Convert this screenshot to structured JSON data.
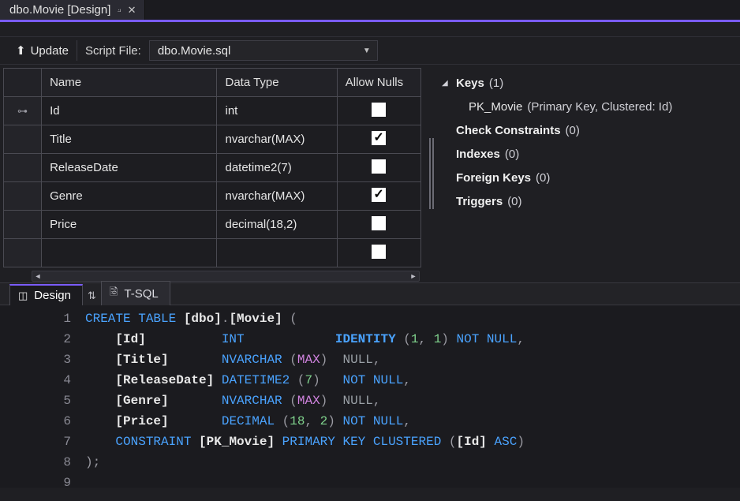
{
  "colors": {
    "background": "#1f1f23",
    "editor_bg": "#1b1b1f",
    "accent": "#7a5cff",
    "border": "#4a4a52",
    "text": "#e8e8e8",
    "muted": "#9a9aa2",
    "token_keyword": "#4aa3ff",
    "token_number": "#7fd18c",
    "token_kwarg": "#d284e0",
    "checkbox_bg": "#ffffff"
  },
  "tab": {
    "title": "dbo.Movie [Design]"
  },
  "toolbar": {
    "update_label": "Update",
    "scriptfile_label": "Script File:",
    "scriptfile_value": "dbo.Movie.sql"
  },
  "grid": {
    "headers": {
      "name": "Name",
      "datatype": "Data Type",
      "allownulls": "Allow Nulls"
    },
    "rows": [
      {
        "pk": true,
        "name": "Id",
        "type": "int",
        "allow_null": false
      },
      {
        "pk": false,
        "name": "Title",
        "type": "nvarchar(MAX)",
        "allow_null": true
      },
      {
        "pk": false,
        "name": "ReleaseDate",
        "type": "datetime2(7)",
        "allow_null": false
      },
      {
        "pk": false,
        "name": "Genre",
        "type": "nvarchar(MAX)",
        "allow_null": true
      },
      {
        "pk": false,
        "name": "Price",
        "type": "decimal(18,2)",
        "allow_null": false
      },
      {
        "pk": false,
        "name": "",
        "type": "",
        "allow_null": false
      }
    ]
  },
  "side": {
    "keys": {
      "label": "Keys",
      "count": "(1)",
      "expanded": true,
      "child_name": "PK_Movie",
      "child_detail": "(Primary Key, Clustered: Id)"
    },
    "checkconstraints": {
      "label": "Check Constraints",
      "count": "(0)"
    },
    "indexes": {
      "label": "Indexes",
      "count": "(0)"
    },
    "foreignkeys": {
      "label": "Foreign Keys",
      "count": "(0)"
    },
    "triggers": {
      "label": "Triggers",
      "count": "(0)"
    }
  },
  "bottom_tabs": {
    "design": "Design",
    "tsql": "T-SQL"
  },
  "sql": {
    "font_family": "Consolas",
    "font_size_pt": 12,
    "line_count": 9,
    "lines": [
      [
        {
          "t": "CREATE TABLE ",
          "c": "kw"
        },
        {
          "t": "[dbo]",
          "c": "idq"
        },
        {
          "t": ".",
          "c": "punc"
        },
        {
          "t": "[Movie]",
          "c": "idq"
        },
        {
          "t": " (",
          "c": "punc"
        }
      ],
      [
        {
          "t": "    ",
          "c": "punc"
        },
        {
          "t": "[Id]",
          "c": "idq"
        },
        {
          "t": "          ",
          "c": "punc"
        },
        {
          "t": "INT",
          "c": "type"
        },
        {
          "t": "            ",
          "c": "punc"
        },
        {
          "t": "IDENTITY",
          "c": "ident"
        },
        {
          "t": " (",
          "c": "punc"
        },
        {
          "t": "1",
          "c": "num"
        },
        {
          "t": ", ",
          "c": "punc"
        },
        {
          "t": "1",
          "c": "num"
        },
        {
          "t": ") ",
          "c": "punc"
        },
        {
          "t": "NOT NULL",
          "c": "kw"
        },
        {
          "t": ",",
          "c": "punc"
        }
      ],
      [
        {
          "t": "    ",
          "c": "punc"
        },
        {
          "t": "[Title]",
          "c": "idq"
        },
        {
          "t": "       ",
          "c": "punc"
        },
        {
          "t": "NVARCHAR",
          "c": "type"
        },
        {
          "t": " (",
          "c": "punc"
        },
        {
          "t": "MAX",
          "c": "kwarg"
        },
        {
          "t": ")  ",
          "c": "punc"
        },
        {
          "t": "NULL",
          "c": "null"
        },
        {
          "t": ",",
          "c": "punc"
        }
      ],
      [
        {
          "t": "    ",
          "c": "punc"
        },
        {
          "t": "[ReleaseDate]",
          "c": "idq"
        },
        {
          "t": " ",
          "c": "punc"
        },
        {
          "t": "DATETIME2",
          "c": "type"
        },
        {
          "t": " (",
          "c": "punc"
        },
        {
          "t": "7",
          "c": "num"
        },
        {
          "t": ")   ",
          "c": "punc"
        },
        {
          "t": "NOT NULL",
          "c": "kw"
        },
        {
          "t": ",",
          "c": "punc"
        }
      ],
      [
        {
          "t": "    ",
          "c": "punc"
        },
        {
          "t": "[Genre]",
          "c": "idq"
        },
        {
          "t": "       ",
          "c": "punc"
        },
        {
          "t": "NVARCHAR",
          "c": "type"
        },
        {
          "t": " (",
          "c": "punc"
        },
        {
          "t": "MAX",
          "c": "kwarg"
        },
        {
          "t": ")  ",
          "c": "punc"
        },
        {
          "t": "NULL",
          "c": "null"
        },
        {
          "t": ",",
          "c": "punc"
        }
      ],
      [
        {
          "t": "    ",
          "c": "punc"
        },
        {
          "t": "[Price]",
          "c": "idq"
        },
        {
          "t": "       ",
          "c": "punc"
        },
        {
          "t": "DECIMAL",
          "c": "type"
        },
        {
          "t": " (",
          "c": "punc"
        },
        {
          "t": "18",
          "c": "num"
        },
        {
          "t": ", ",
          "c": "punc"
        },
        {
          "t": "2",
          "c": "num"
        },
        {
          "t": ") ",
          "c": "punc"
        },
        {
          "t": "NOT NULL",
          "c": "kw"
        },
        {
          "t": ",",
          "c": "punc"
        }
      ],
      [
        {
          "t": "    ",
          "c": "punc"
        },
        {
          "t": "CONSTRAINT ",
          "c": "kw"
        },
        {
          "t": "[PK_Movie]",
          "c": "idq"
        },
        {
          "t": " ",
          "c": "punc"
        },
        {
          "t": "PRIMARY KEY CLUSTERED",
          "c": "kw"
        },
        {
          "t": " (",
          "c": "punc"
        },
        {
          "t": "[Id]",
          "c": "idq"
        },
        {
          "t": " ",
          "c": "punc"
        },
        {
          "t": "ASC",
          "c": "kw"
        },
        {
          "t": ")",
          "c": "punc"
        }
      ],
      [
        {
          "t": ");",
          "c": "punc"
        }
      ],
      [
        {
          "t": "",
          "c": "punc"
        }
      ]
    ]
  }
}
